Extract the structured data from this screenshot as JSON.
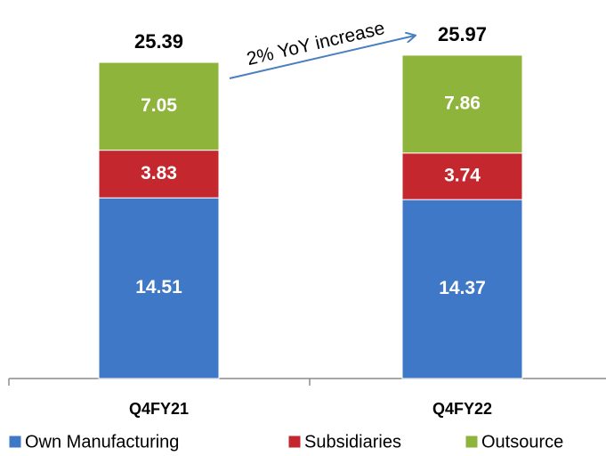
{
  "chart_data": {
    "type": "stacked_bar",
    "categories": [
      "Q4FY21",
      "Q4FY22"
    ],
    "series": [
      {
        "name": "Own Manufacturing",
        "color": "#3f78c6",
        "values": [
          14.51,
          14.37
        ]
      },
      {
        "name": "Subsidiaries",
        "color": "#c4282e",
        "values": [
          3.83,
          3.74
        ]
      },
      {
        "name": "Outsource",
        "color": "#8fb43c",
        "values": [
          7.05,
          7.86
        ]
      }
    ],
    "totals": [
      25.39,
      25.97
    ],
    "annotation": "2% YoY increase",
    "legend": "bottom"
  }
}
